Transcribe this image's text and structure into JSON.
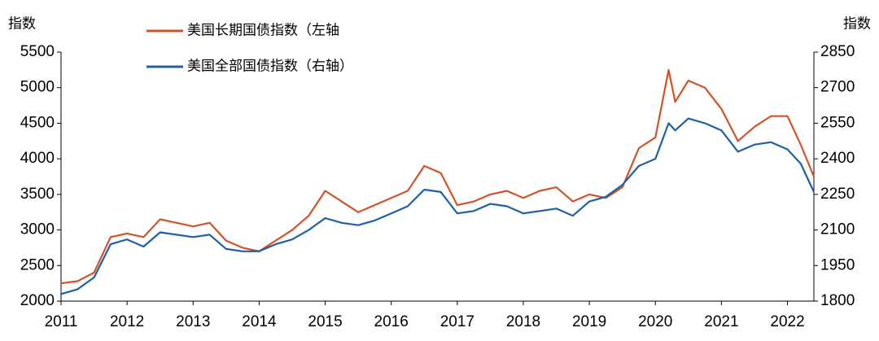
{
  "chart_data": {
    "type": "line",
    "y_label": "指数",
    "y2_label": "指数",
    "x": [
      2011.0,
      2011.25,
      2011.5,
      2011.75,
      2012.0,
      2012.25,
      2012.5,
      2012.75,
      2013.0,
      2013.25,
      2013.5,
      2013.75,
      2014.0,
      2014.25,
      2014.5,
      2014.75,
      2015.0,
      2015.25,
      2015.5,
      2015.75,
      2016.0,
      2016.25,
      2016.5,
      2016.75,
      2017.0,
      2017.25,
      2017.5,
      2017.75,
      2018.0,
      2018.25,
      2018.5,
      2018.75,
      2019.0,
      2019.25,
      2019.5,
      2019.75,
      2020.0,
      2020.2,
      2020.3,
      2020.5,
      2020.75,
      2021.0,
      2021.25,
      2021.5,
      2021.75,
      2022.0,
      2022.2,
      2022.4
    ],
    "series": [
      {
        "name": "美国长期国债指数（左轴",
        "color": "#d2532a",
        "values": [
          2250,
          2280,
          2400,
          2900,
          2950,
          2900,
          3150,
          3100,
          3050,
          3100,
          2850,
          2750,
          2700,
          2850,
          3000,
          3200,
          3550,
          3400,
          3250,
          3350,
          3450,
          3550,
          3900,
          3800,
          3350,
          3400,
          3500,
          3550,
          3450,
          3550,
          3600,
          3400,
          3500,
          3450,
          3600,
          4150,
          4300,
          5250,
          4800,
          5100,
          5000,
          4700,
          4250,
          4450,
          4600,
          4600,
          4200,
          3750
        ]
      },
      {
        "name": "美国全部国债指数（右轴）",
        "color": "#1f5fa8",
        "axis": "y2",
        "values": [
          1830,
          1850,
          1900,
          2040,
          2060,
          2030,
          2090,
          2080,
          2070,
          2080,
          2020,
          2010,
          2010,
          2040,
          2060,
          2100,
          2150,
          2130,
          2120,
          2140,
          2170,
          2200,
          2270,
          2260,
          2170,
          2180,
          2210,
          2200,
          2170,
          2180,
          2190,
          2160,
          2220,
          2240,
          2290,
          2370,
          2400,
          2550,
          2520,
          2570,
          2550,
          2520,
          2430,
          2460,
          2470,
          2440,
          2380,
          2260
        ]
      }
    ],
    "xlim": [
      2011,
      2022.4
    ],
    "xticks": [
      2011,
      2012,
      2013,
      2014,
      2015,
      2016,
      2017,
      2018,
      2019,
      2020,
      2021,
      2022
    ],
    "ylim": [
      2000,
      5500
    ],
    "yticks": [
      2000,
      2500,
      3000,
      3500,
      4000,
      4500,
      5000,
      5500
    ],
    "y2lim": [
      1800,
      2850
    ],
    "y2ticks": [
      1800,
      1950,
      2100,
      2250,
      2400,
      2550,
      2700,
      2850
    ],
    "grid": false
  }
}
